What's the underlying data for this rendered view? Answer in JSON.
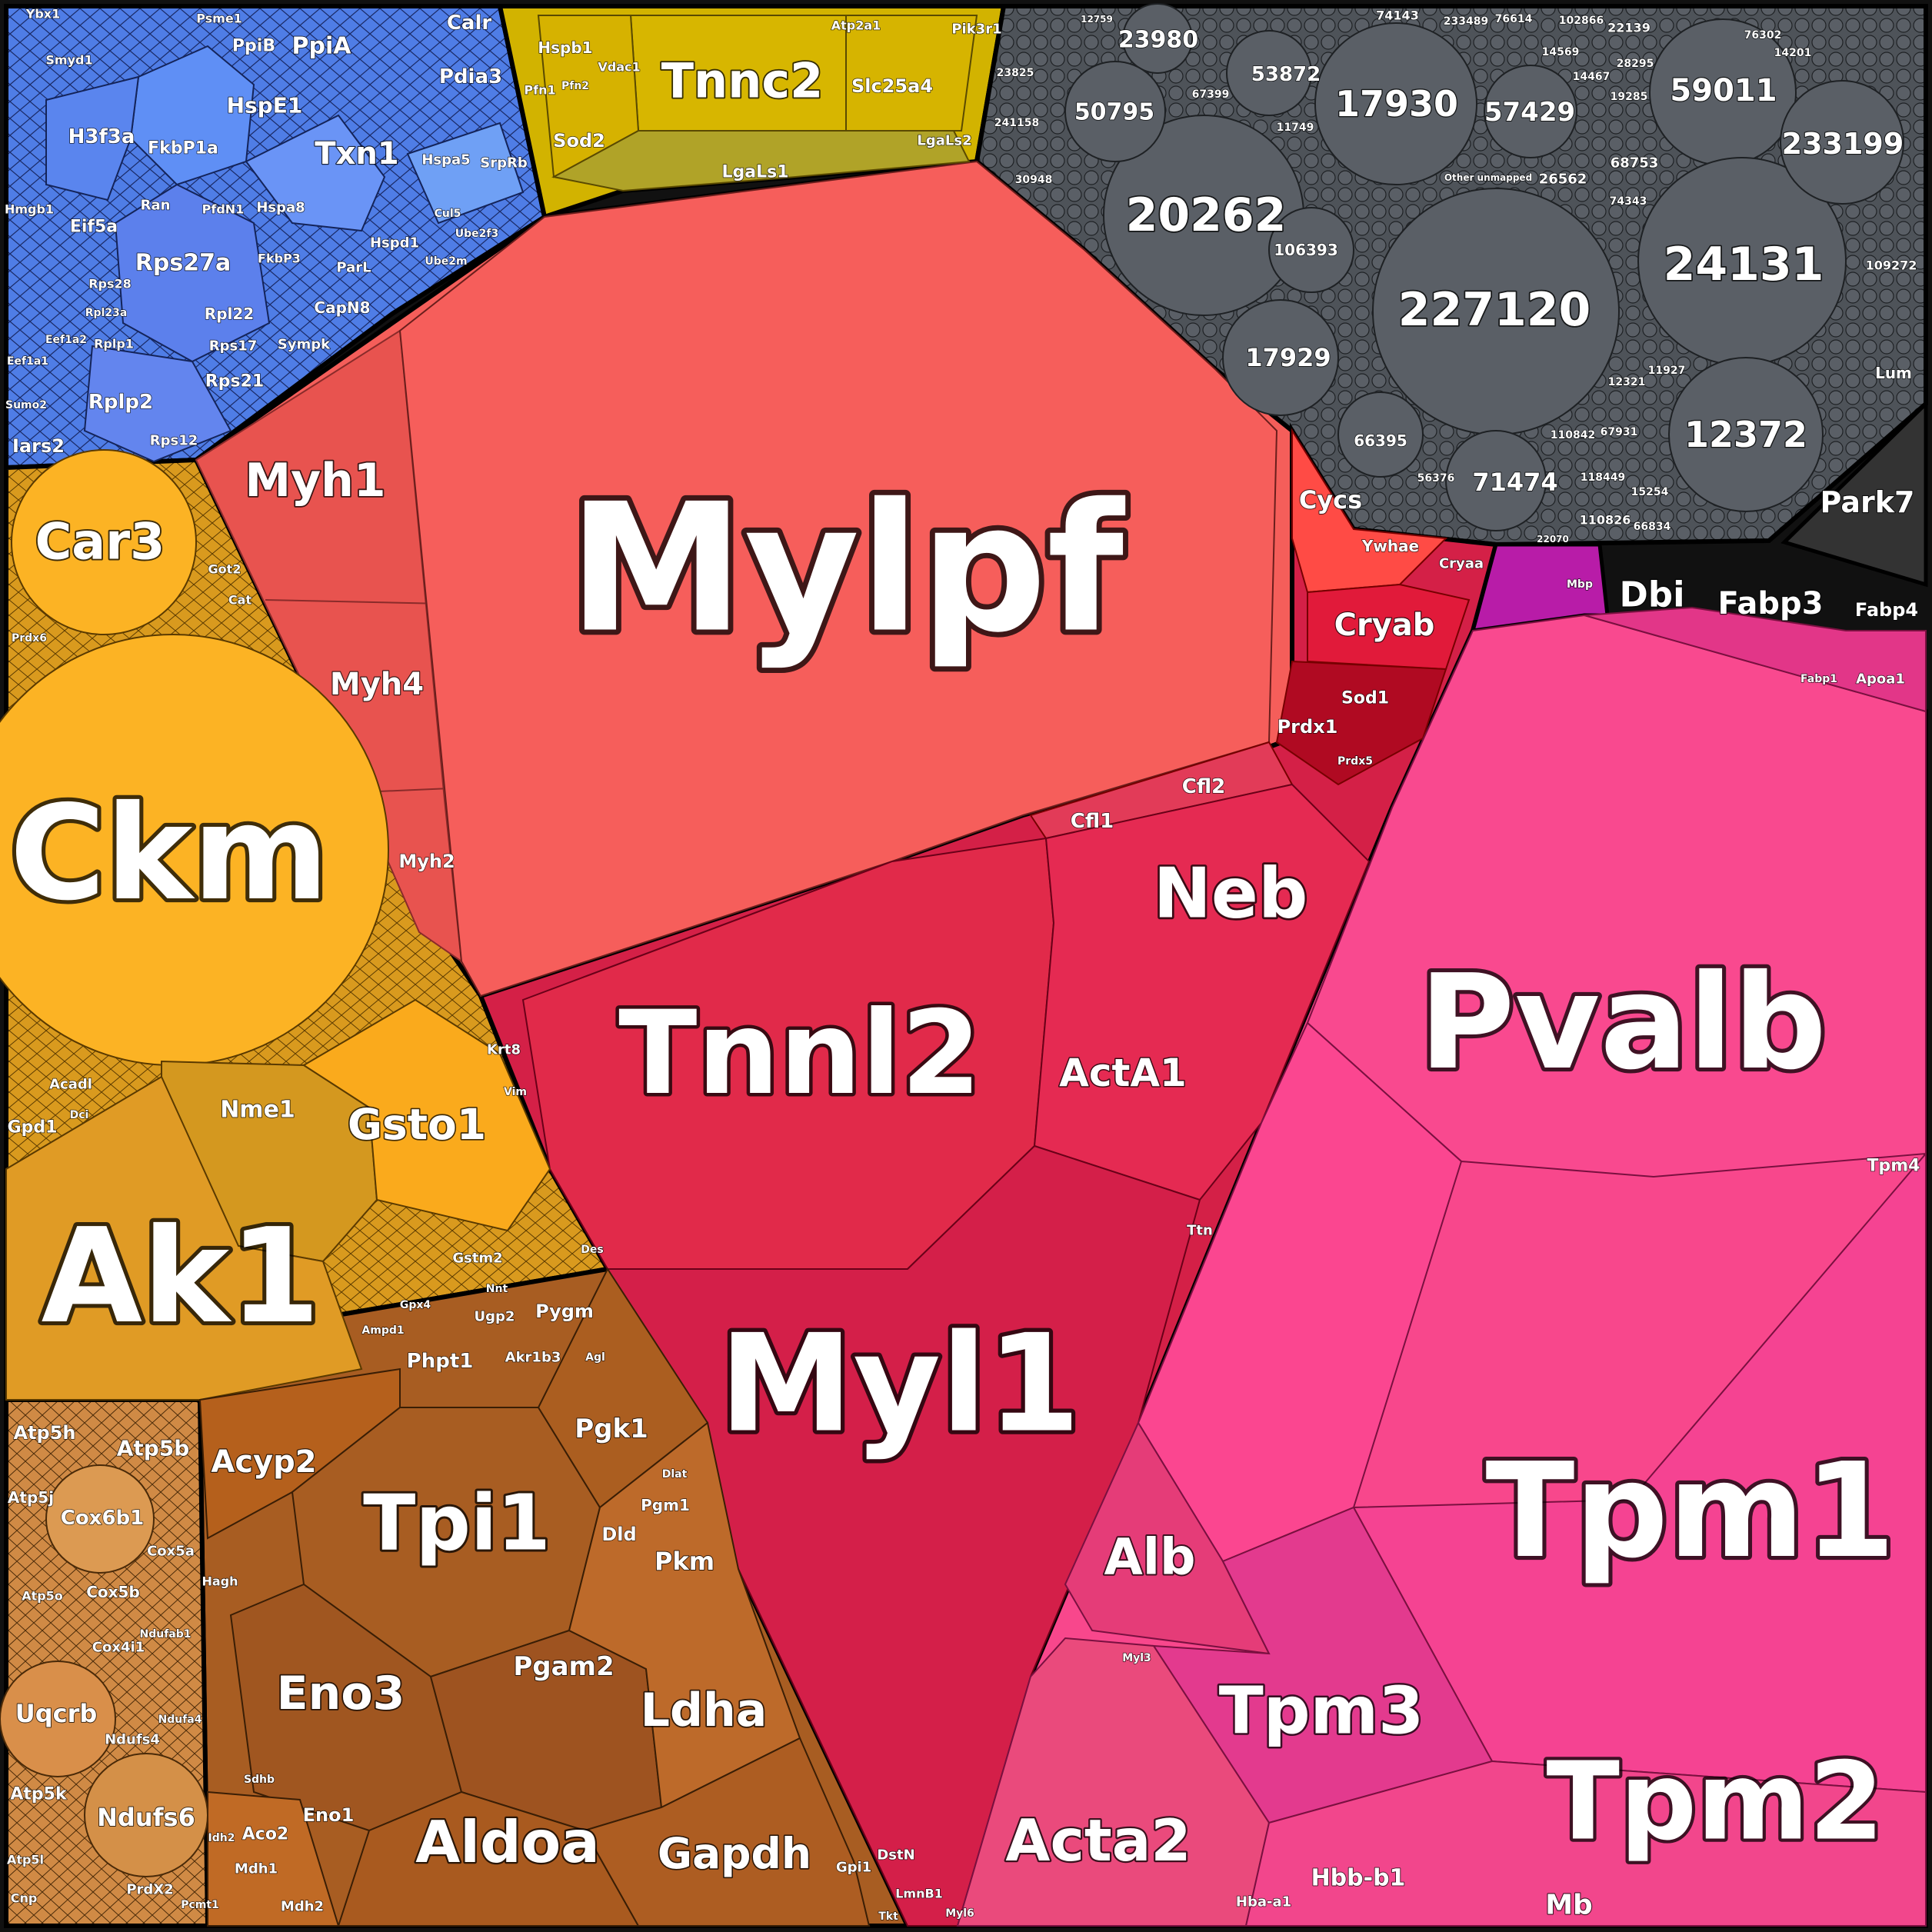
{
  "diagram": {
    "type": "voronoi-treemap",
    "groups": [
      {
        "key": "blue",
        "color": "#5b86f0"
      },
      {
        "key": "yellow",
        "color": "#d6b400"
      },
      {
        "key": "gray",
        "color": "#555a60"
      },
      {
        "key": "salmon",
        "color": "#f55e5a"
      },
      {
        "key": "orange",
        "color": "#fbb021"
      },
      {
        "key": "brown",
        "color": "#a85d22"
      },
      {
        "key": "tan",
        "color": "#d9934e"
      },
      {
        "key": "red",
        "color": "#d42047"
      },
      {
        "key": "pink",
        "color": "#f8478c"
      },
      {
        "key": "magenta",
        "color": "#c42ab8"
      }
    ],
    "labels": {
      "mylpf": "Mylpf",
      "myh1": "Myh1",
      "myh4": "Myh4",
      "myh2": "Myh2",
      "cycs": "Cycs",
      "ywhae": "Ywhae",
      "cryaa": "Cryaa",
      "cryab": "Cryab",
      "sod1": "Sod1",
      "prdx1": "Prdx1",
      "prdx5": "Prdx5",
      "cfl2": "Cfl2",
      "cfl1": "Cfl1",
      "neb": "Neb",
      "tnni2": "Tnnl2",
      "acta1": "ActA1",
      "ttn": "Ttn",
      "krt8": "Krt8",
      "vim": "Vim",
      "des": "Des",
      "myl1": "Myl1",
      "dstn": "DstN",
      "lmnb1": "LmnB1",
      "tkt": "Tkt",
      "pvalb": "Pvalb",
      "tpm4": "Tpm4",
      "tpm1": "Tpm1",
      "tpm3": "Tpm3",
      "tpm2": "Tpm2",
      "alb": "Alb",
      "acta2": "Acta2",
      "hbb": "Hbb-b1",
      "hbaa1": "Hba-a1",
      "mb": "Mb",
      "myl3": "Myl3",
      "myl6": "Myl6",
      "dbi": "Dbi",
      "fabp3": "Fabp3",
      "fabp4": "Fabp4",
      "fabp1": "Fabp1",
      "apoa1": "Apoa1",
      "mbp": "Mbp",
      "park7": "Park7",
      "lum": "Lum",
      "car3": "Car3",
      "got2": "Got2",
      "cat": "Cat",
      "prdx6": "Prdx6",
      "ckm": "Ckm",
      "acadl": "Acadl",
      "gpd1": "Gpd1",
      "dci": "Dci",
      "nme1": "Nme1",
      "gsto1": "Gsto1",
      "ak1": "Ak1",
      "gstm2": "Gstm2",
      "gpx4": "Gpx4",
      "nnt": "Nnt",
      "ugp2": "Ugp2",
      "pygm": "Pygm",
      "phpt1": "Phpt1",
      "akr1b3": "Akr1b3",
      "ampd1": "Ampd1",
      "agl": "Agl",
      "acyp2": "Acyp2",
      "tpi1": "Tpi1",
      "pgk1": "Pgk1",
      "pgm1": "Pgm1",
      "dld": "Dld",
      "pkm": "Pkm",
      "eno3": "Eno3",
      "pgam2": "Pgam2",
      "ldha": "Ldha",
      "aldoa": "Aldoa",
      "gapdh": "Gapdh",
      "eno1": "Eno1",
      "aco2": "Aco2",
      "mdh1": "Mdh1",
      "mdh2": "Mdh2",
      "gpi1": "Gpi1",
      "hagh": "Hagh",
      "sdhb": "Sdhb",
      "idh2": "Idh2",
      "dlat": "Dlat",
      "atp5h": "Atp5h",
      "atp5b": "Atp5b",
      "atp5j": "Atp5j",
      "cox6b1": "Cox6b1",
      "cox5a": "Cox5a",
      "cox5b": "Cox5b",
      "atp5o": "Atp5o",
      "cox4i1": "Cox4i1",
      "ndufab1": "Ndufab1",
      "uqcrb": "Uqcrb",
      "ndufs4": "Ndufs4",
      "ndufa4": "Ndufa4",
      "atp5k": "Atp5k",
      "ndufs6": "Ndufs6",
      "atp5l": "Atp5l",
      "cnp": "Cnp",
      "prdx2": "PrdX2",
      "pcmt1": "Pcmt1",
      "ybx1": "Ybx1",
      "psme1": "Psme1",
      "calr": "Calr",
      "ppib": "PpiB",
      "ppia": "PpiA",
      "smyd1": "Smyd1",
      "pdia3": "Pdia3",
      "h3f3a": "H3f3a",
      "hspe1": "HspE1",
      "fkbp1a": "FkbP1a",
      "txn1": "Txn1",
      "hspa5": "Hspa5",
      "srprb": "SrpRb",
      "hmgb1": "Hmgb1",
      "eif5a": "Eif5a",
      "ran": "Ran",
      "pfdn1": "PfdN1",
      "hspa8": "Hspa8",
      "rps27a": "Rps27a",
      "cul5": "Cul5",
      "ube2f3": "Ube2f3",
      "hspd1": "Hspd1",
      "fkbp3": "FkbP3",
      "parl": "ParL",
      "ube2m": "Ube2m",
      "rps28": "Rps28",
      "rpl22": "Rpl22",
      "rpl23a": "Rpl23a",
      "rplp1": "Rplp1",
      "rps17": "Rps17",
      "capn8": "CapN8",
      "sympk": "Sympk",
      "eef1a2": "Eef1a2",
      "eef1a1": "Eef1a1",
      "rps21": "Rps21",
      "rplp2": "Rplp2",
      "sumo2": "Sumo2",
      "rps12": "Rps12",
      "iars2": "Iars2",
      "tnnc2": "Tnnc2",
      "hspb1": "Hspb1",
      "vdac1": "Vdac1",
      "atp2a1": "Atp2a1",
      "slc25a4": "Slc25a4",
      "pik3r1": "Pik3r1",
      "pfn1": "Pfn1",
      "pfn2": "Pfn2",
      "sod2": "Sod2",
      "lgals1": "LgaLs1",
      "lgals2": "LgaLs2",
      "n23980": "23980",
      "n50795": "50795",
      "n53872": "53872",
      "n17930": "17930",
      "n57429": "57429",
      "n59011": "59011",
      "n233199": "233199",
      "n20262": "20262",
      "n24131": "24131",
      "n227120": "227120",
      "n17929": "17929",
      "n12372": "12372",
      "n106393": "106393",
      "n66395": "66395",
      "n71474": "71474",
      "n26562": "26562",
      "n68753": "68753",
      "n109272": "109272",
      "n110826": "110826",
      "n12321": "12321",
      "n11927": "11927",
      "n67399": "67399",
      "n22139": "22139",
      "n74143": "74143",
      "n241158": "241158",
      "n30948": "30948",
      "n11749": "11749",
      "n233489": "233489",
      "n76614": "76614",
      "n110842": "110842",
      "n118449": "118449",
      "n66834": "66834",
      "n15254": "15254",
      "n56376": "56376",
      "n67931": "67931",
      "n74343": "74343",
      "n19285": "19285",
      "n14201": "14201",
      "n23825": "23825",
      "n12759": "12759",
      "n22070": "22070",
      "n102866": "102866",
      "n14569": "14569",
      "n14467": "14467",
      "n28295": "28295",
      "n76302": "76302",
      "other_unmapped": "Other unmapped"
    }
  }
}
